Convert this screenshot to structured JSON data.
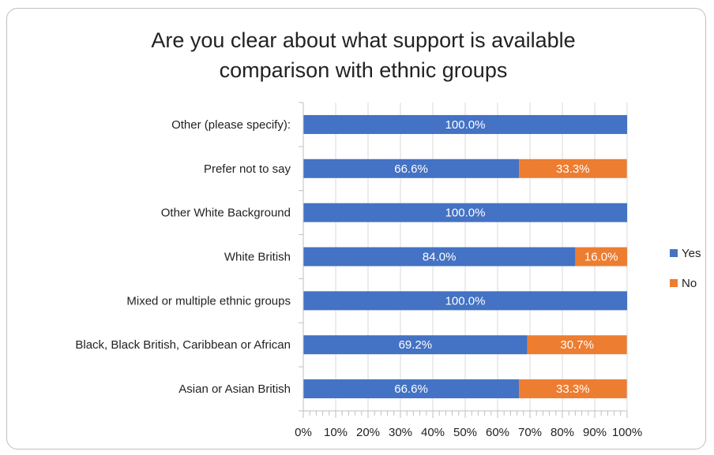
{
  "chart_data": {
    "type": "bar",
    "orientation": "horizontal",
    "stacked": true,
    "title": "Are you clear about what support is available comparison with ethnic groups",
    "title_lines": [
      "Are you clear about what support is available",
      "comparison with ethnic groups"
    ],
    "categories": [
      "Other (please specify):",
      "Prefer not to say",
      "Other White Background",
      "White British",
      "Mixed or multiple ethnic groups",
      "Black, Black British, Caribbean or African",
      "Asian or Asian British"
    ],
    "series": [
      {
        "name": "Yes",
        "color": "#4472c4",
        "values": [
          100.0,
          66.6,
          100.0,
          84.0,
          100.0,
          69.2,
          66.6
        ],
        "labels": [
          "100.0%",
          "66.6%",
          "100.0%",
          "84.0%",
          "100.0%",
          "69.2%",
          "66.6%"
        ]
      },
      {
        "name": "No",
        "color": "#ed7d31",
        "values": [
          0,
          33.3,
          0,
          16.0,
          0,
          30.7,
          33.3
        ],
        "labels": [
          "",
          "33.3%",
          "",
          "16.0%",
          "",
          "30.7%",
          "33.3%"
        ]
      }
    ],
    "x_ticks": [
      "0%",
      "10%",
      "20%",
      "30%",
      "40%",
      "50%",
      "60%",
      "70%",
      "80%",
      "90%",
      "100%"
    ],
    "xlim": [
      0,
      100
    ],
    "xlabel": "",
    "ylabel": "",
    "grid": "vertical",
    "legend_position": "right"
  }
}
